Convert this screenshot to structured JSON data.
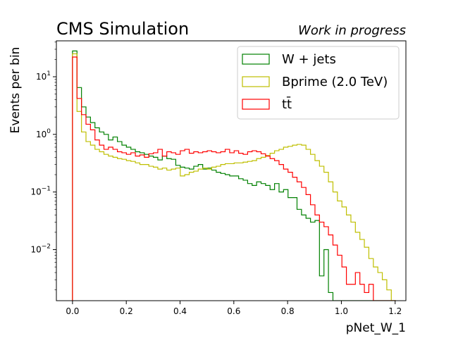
{
  "chart_data": {
    "type": "line",
    "histogram_style": "step",
    "title_left": "CMS Simulation",
    "title_right": "Work in progress",
    "xlabel": "pNet_W_1",
    "ylabel": "Events per bin",
    "xlim": [
      -0.06,
      1.24
    ],
    "ylim": [
      0.0013,
      42
    ],
    "yscale": "log",
    "xticks": [
      0.0,
      0.2,
      0.4,
      0.6,
      0.8,
      1.0,
      1.2
    ],
    "xtick_labels": [
      "0.0",
      "0.2",
      "0.4",
      "0.6",
      "0.8",
      "1.0",
      "1.2"
    ],
    "yticks": [
      0.01,
      0.1,
      1,
      10
    ],
    "grid": false,
    "legend_position": "top-right",
    "bin_start": 0.0,
    "bin_width": 0.0167,
    "series": [
      {
        "name": "W + jets",
        "color": "#008000",
        "values": [
          28,
          6.5,
          3.0,
          2.0,
          1.6,
          1.3,
          1.1,
          1.0,
          0.8,
          0.9,
          0.75,
          0.65,
          0.6,
          0.55,
          0.5,
          0.48,
          0.45,
          0.42,
          0.4,
          0.36,
          0.42,
          0.38,
          0.37,
          0.29,
          0.27,
          0.26,
          0.25,
          0.28,
          0.3,
          0.25,
          0.26,
          0.24,
          0.22,
          0.21,
          0.2,
          0.19,
          0.19,
          0.17,
          0.16,
          0.14,
          0.13,
          0.15,
          0.14,
          0.13,
          0.11,
          0.14,
          0.1,
          0.11,
          0.08,
          0.08,
          0.05,
          0.04,
          0.035,
          0.03,
          0.032,
          0.0035,
          0.01,
          0.0018,
          0.0013,
          0.0013,
          0.0013,
          0.0013,
          0.0013,
          0.0013,
          0.0013,
          0.0013,
          0.0013,
          0.0013,
          0.0013,
          0.0013,
          0.0013,
          0.0013
        ]
      },
      {
        "name": "Bprime (2.0 TeV)",
        "color": "#bfbf00",
        "values": [
          25,
          2.5,
          1.1,
          0.75,
          0.65,
          0.55,
          0.5,
          0.45,
          0.42,
          0.4,
          0.38,
          0.37,
          0.35,
          0.34,
          0.32,
          0.3,
          0.3,
          0.28,
          0.27,
          0.25,
          0.26,
          0.24,
          0.25,
          0.26,
          0.19,
          0.2,
          0.22,
          0.23,
          0.25,
          0.26,
          0.25,
          0.27,
          0.28,
          0.3,
          0.31,
          0.31,
          0.32,
          0.32,
          0.33,
          0.34,
          0.35,
          0.38,
          0.4,
          0.43,
          0.47,
          0.52,
          0.55,
          0.6,
          0.62,
          0.65,
          0.67,
          0.65,
          0.55,
          0.45,
          0.35,
          0.28,
          0.22,
          0.15,
          0.1,
          0.07,
          0.055,
          0.04,
          0.03,
          0.02,
          0.015,
          0.011,
          0.007,
          0.005,
          0.004,
          0.003,
          0.002,
          0.0013
        ]
      },
      {
        "name": "tt̄",
        "color": "#ff0000",
        "values": [
          22,
          4.2,
          2.2,
          1.5,
          1.2,
          0.8,
          0.65,
          0.55,
          0.6,
          0.55,
          0.5,
          0.48,
          0.45,
          0.48,
          0.42,
          0.44,
          0.4,
          0.46,
          0.48,
          0.55,
          0.42,
          0.5,
          0.48,
          0.45,
          0.52,
          0.55,
          0.47,
          0.5,
          0.48,
          0.5,
          0.52,
          0.5,
          0.48,
          0.5,
          0.55,
          0.48,
          0.52,
          0.47,
          0.45,
          0.5,
          0.52,
          0.5,
          0.46,
          0.42,
          0.38,
          0.35,
          0.3,
          0.25,
          0.22,
          0.18,
          0.15,
          0.12,
          0.09,
          0.06,
          0.04,
          0.03,
          0.025,
          0.018,
          0.012,
          0.008,
          0.005,
          0.0025,
          0.0025,
          0.004,
          0.0025,
          0.0018,
          0.0025,
          0.0013,
          0.0013,
          0.0013,
          0.0013,
          0.0013
        ]
      }
    ]
  }
}
